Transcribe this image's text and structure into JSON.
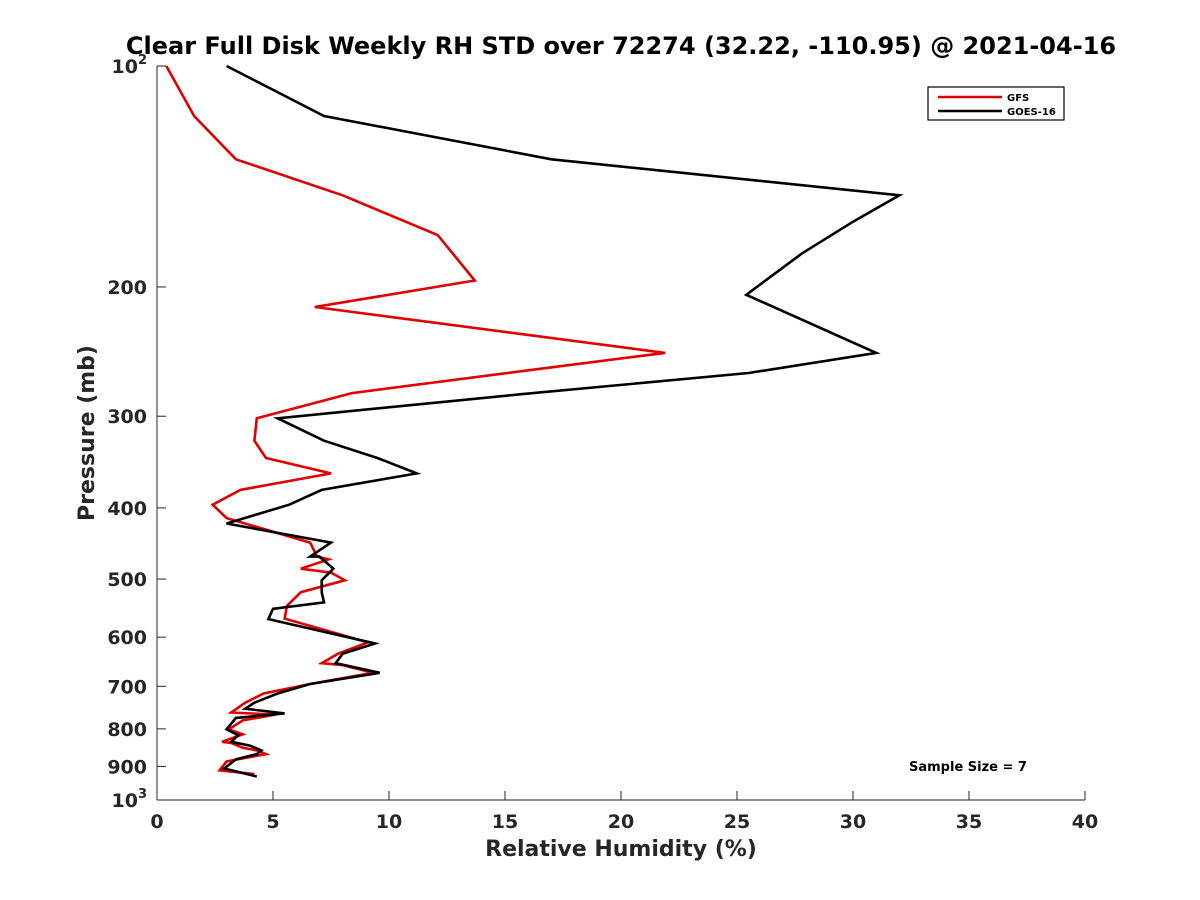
{
  "chart_data": {
    "type": "line",
    "title": "Clear Full Disk Weekly RH STD over 72274 (32.22, -110.95) @ 2021-04-16",
    "xlabel": "Relative Humidity (%)",
    "ylabel": "Pressure (mb)",
    "xlim": [
      0,
      40
    ],
    "ylim": [
      100,
      1000
    ],
    "y_scale": "log",
    "y_reversed": true,
    "grid": false,
    "legend_position": "top-right",
    "x_ticks": [
      0,
      5,
      10,
      15,
      20,
      25,
      30,
      35,
      40
    ],
    "x_tick_labels": [
      "0",
      "5",
      "10",
      "15",
      "20",
      "25",
      "30",
      "35",
      "40"
    ],
    "y_ticks": [
      100,
      200,
      300,
      400,
      500,
      600,
      700,
      800,
      900,
      1000
    ],
    "y_tick_labels": [
      {
        "base": "10",
        "exp": "2"
      },
      {
        "base": "200"
      },
      {
        "base": "300"
      },
      {
        "base": "400"
      },
      {
        "base": "500"
      },
      {
        "base": "600"
      },
      {
        "base": "700"
      },
      {
        "base": "800"
      },
      {
        "base": "900"
      },
      {
        "base": "10",
        "exp": "3"
      }
    ],
    "annotation": "Sample Size = 7",
    "series": [
      {
        "name": "GFS",
        "color": "#e00000",
        "points": [
          [
            0.4,
            100
          ],
          [
            1.6,
            117
          ],
          [
            3.4,
            134
          ],
          [
            8.0,
            150
          ],
          [
            12.1,
            170
          ],
          [
            13.7,
            196
          ],
          [
            6.8,
            213
          ],
          [
            21.9,
            246
          ],
          [
            15.5,
            261
          ],
          [
            8.4,
            279
          ],
          [
            4.3,
            302
          ],
          [
            4.2,
            324
          ],
          [
            4.7,
            342
          ],
          [
            7.5,
            359
          ],
          [
            3.6,
            378
          ],
          [
            2.4,
            396
          ],
          [
            3.0,
            413
          ],
          [
            6.6,
            446
          ],
          [
            6.9,
            466
          ],
          [
            7.4,
            470
          ],
          [
            6.2,
            484
          ],
          [
            7.5,
            490
          ],
          [
            8.1,
            502
          ],
          [
            6.2,
            521
          ],
          [
            5.6,
            544
          ],
          [
            5.5,
            566
          ],
          [
            9.1,
            610
          ],
          [
            7.8,
            632
          ],
          [
            7.1,
            651
          ],
          [
            8.0,
            655
          ],
          [
            9.3,
            671
          ],
          [
            6.6,
            695
          ],
          [
            4.6,
            716
          ],
          [
            3.8,
            737
          ],
          [
            3.2,
            760
          ],
          [
            5.1,
            765
          ],
          [
            3.7,
            779
          ],
          [
            3.1,
            801
          ],
          [
            3.7,
            814
          ],
          [
            2.8,
            833
          ],
          [
            3.2,
            836
          ],
          [
            3.7,
            849
          ],
          [
            4.3,
            856
          ],
          [
            4.7,
            866
          ],
          [
            3.0,
            886
          ],
          [
            2.7,
            911
          ],
          [
            4.2,
            922
          ]
        ]
      },
      {
        "name": "GOES-16",
        "color": "#000000",
        "points": [
          [
            3.0,
            100
          ],
          [
            7.2,
            117
          ],
          [
            17.0,
            134
          ],
          [
            32.0,
            150
          ],
          [
            30.0,
            163
          ],
          [
            27.8,
            180
          ],
          [
            25.4,
            205
          ],
          [
            31.0,
            246
          ],
          [
            25.5,
            262
          ],
          [
            15.7,
            280
          ],
          [
            5.2,
            302
          ],
          [
            7.2,
            324
          ],
          [
            9.5,
            342
          ],
          [
            11.2,
            359
          ],
          [
            7.1,
            378
          ],
          [
            5.7,
            396
          ],
          [
            3.0,
            420
          ],
          [
            7.5,
            446
          ],
          [
            6.6,
            466
          ],
          [
            7.0,
            466
          ],
          [
            7.6,
            484
          ],
          [
            7.1,
            502
          ],
          [
            7.1,
            521
          ],
          [
            7.2,
            538
          ],
          [
            5.0,
            549
          ],
          [
            4.8,
            567
          ],
          [
            9.4,
            612
          ],
          [
            8.0,
            632
          ],
          [
            7.7,
            651
          ],
          [
            9.6,
            671
          ],
          [
            6.6,
            695
          ],
          [
            5.2,
            716
          ],
          [
            4.2,
            737
          ],
          [
            3.8,
            751
          ],
          [
            5.5,
            762
          ],
          [
            3.4,
            773
          ],
          [
            3.0,
            801
          ],
          [
            3.5,
            816
          ],
          [
            3.2,
            833
          ],
          [
            4.0,
            843
          ],
          [
            4.5,
            856
          ],
          [
            4.3,
            866
          ],
          [
            3.4,
            880
          ],
          [
            2.9,
            906
          ],
          [
            4.3,
            929
          ]
        ]
      }
    ]
  }
}
